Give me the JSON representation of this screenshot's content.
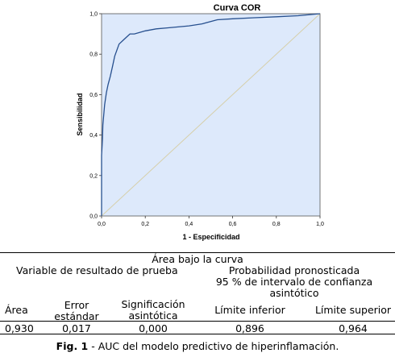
{
  "chart_data": {
    "type": "line",
    "title": "Curva COR",
    "xlabel": "1 - Especificidad",
    "ylabel": "Sensibilidad",
    "xlim": [
      0,
      1
    ],
    "ylim": [
      0,
      1
    ],
    "ticks": [
      "0,0",
      "0,2",
      "0,4",
      "0,6",
      "0,8",
      "1,0"
    ],
    "grid": false,
    "colors": {
      "plot_bg": "#dde9fb",
      "curve": "#27508f",
      "reference": "#d6cfaa"
    },
    "series": [
      {
        "x": [
          0,
          0,
          0,
          0.004,
          0.006,
          0.01,
          0.014,
          0.018,
          0.022,
          0.03,
          0.04,
          0.05,
          0.06,
          0.07,
          0.08,
          0.1,
          0.12,
          0.13,
          0.15,
          0.2,
          0.25,
          0.3,
          0.4,
          0.46,
          0.53,
          0.6,
          0.7,
          0.8,
          0.9,
          1.0
        ],
        "y": [
          0,
          0.15,
          0.3,
          0.38,
          0.45,
          0.5,
          0.55,
          0.58,
          0.61,
          0.65,
          0.69,
          0.74,
          0.79,
          0.82,
          0.85,
          0.87,
          0.89,
          0.9,
          0.9,
          0.915,
          0.925,
          0.93,
          0.94,
          0.95,
          0.97,
          0.975,
          0.98,
          0.985,
          0.99,
          1.0
        ]
      },
      {
        "x": [
          0,
          1
        ],
        "y": [
          0,
          1
        ]
      }
    ]
  },
  "table": {
    "title": "Área bajo la curva",
    "variable_label": "Variable de resultado de prueba",
    "prob_label": "Probabilidad pronosticada",
    "ci_label_1": "95 % de intervalo de confianza",
    "ci_label_2": "asintótico",
    "headers": {
      "area": "Área",
      "error_1": "Error",
      "error_2": "estándar",
      "sig_1": "Significación",
      "sig_2": "asintótica",
      "lower": "Límite inferior",
      "upper": "Límite superior"
    },
    "values": {
      "area": "0,930",
      "error": "0,017",
      "sig": "0,000",
      "lower": "0,896",
      "upper": "0,964"
    }
  },
  "caption": {
    "label": "Fig. 1",
    "text": " - AUC del modelo predictivo de hiperinflamación."
  }
}
